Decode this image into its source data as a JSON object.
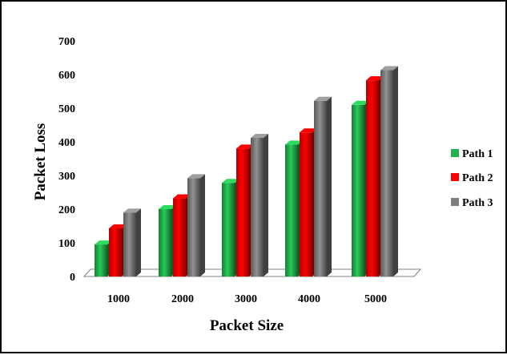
{
  "chart_data": {
    "type": "bar",
    "categories": [
      "1000",
      "2000",
      "3000",
      "4000",
      "5000"
    ],
    "series": [
      {
        "name": "Path 1",
        "values": [
          95,
          200,
          278,
          392,
          510
        ],
        "color": "#22b14c"
      },
      {
        "name": "Path 2",
        "values": [
          143,
          232,
          380,
          428,
          583
        ],
        "color": "#ff0000"
      },
      {
        "name": "Path 3",
        "values": [
          190,
          292,
          412,
          522,
          613
        ],
        "color": "#7f7f7f"
      }
    ],
    "xlabel": "Packet Size",
    "ylabel": "Packet Loss",
    "ylim": [
      0,
      700
    ],
    "yticks": [
      "0",
      "100",
      "200",
      "300",
      "400",
      "500",
      "600",
      "700"
    ],
    "grid": false,
    "legend": "right",
    "style": "3d-cylinder"
  }
}
